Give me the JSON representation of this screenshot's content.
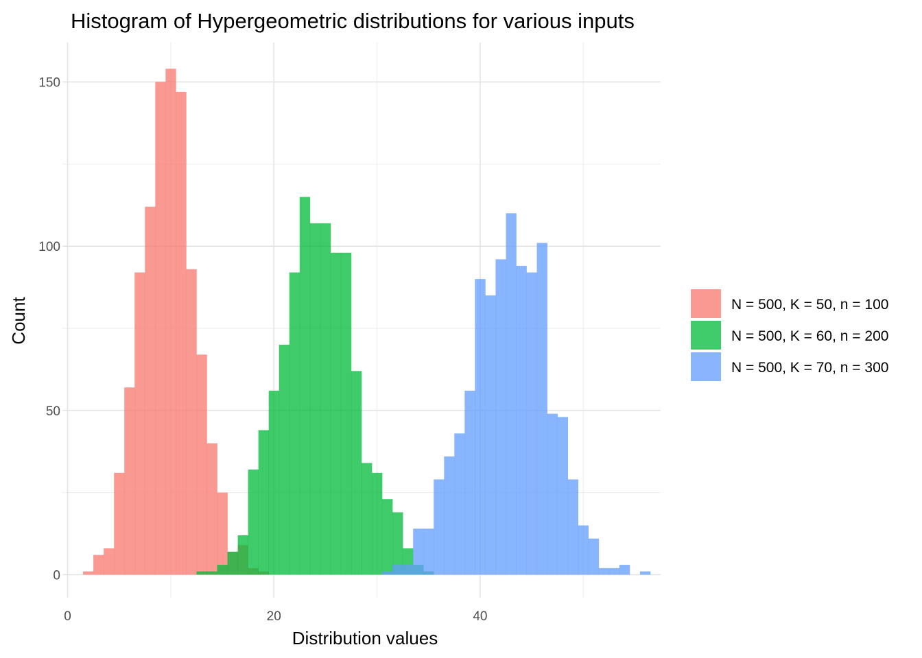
{
  "chart_data": {
    "type": "bar",
    "subtype": "overlapping-histogram",
    "title": "Histogram of Hypergeometric distributions for various inputs",
    "xlabel": "Distribution values",
    "ylabel": "Count",
    "xlim": [
      -0.5,
      57.5
    ],
    "ylim": [
      -7,
      162
    ],
    "x_ticks": [
      0,
      20,
      40
    ],
    "y_ticks": [
      0,
      50,
      100,
      150
    ],
    "x_minor_gridlines": [
      10,
      30,
      50
    ],
    "y_minor_gridlines": [
      25,
      75,
      125
    ],
    "grid": true,
    "bin_width": 1,
    "bar_opacity": 0.75,
    "legend_position": "right",
    "series": [
      {
        "name": "N = 500, K = 50, n = 100",
        "color": "#F8766D",
        "bins": [
          {
            "x": 2,
            "count": 1
          },
          {
            "x": 3,
            "count": 6
          },
          {
            "x": 4,
            "count": 8
          },
          {
            "x": 5,
            "count": 31
          },
          {
            "x": 6,
            "count": 57
          },
          {
            "x": 7,
            "count": 92
          },
          {
            "x": 8,
            "count": 112
          },
          {
            "x": 9,
            "count": 150
          },
          {
            "x": 10,
            "count": 154
          },
          {
            "x": 11,
            "count": 147
          },
          {
            "x": 12,
            "count": 93
          },
          {
            "x": 13,
            "count": 67
          },
          {
            "x": 14,
            "count": 40
          },
          {
            "x": 15,
            "count": 25
          },
          {
            "x": 16,
            "count": 7
          },
          {
            "x": 17,
            "count": 9
          },
          {
            "x": 18,
            "count": 2
          },
          {
            "x": 19,
            "count": 1
          }
        ]
      },
      {
        "name": "N = 500, K = 60, n = 200",
        "color": "#00BA38",
        "bins": [
          {
            "x": 13,
            "count": 1
          },
          {
            "x": 14,
            "count": 1
          },
          {
            "x": 15,
            "count": 3
          },
          {
            "x": 16,
            "count": 7
          },
          {
            "x": 17,
            "count": 12
          },
          {
            "x": 18,
            "count": 32
          },
          {
            "x": 19,
            "count": 44
          },
          {
            "x": 20,
            "count": 56
          },
          {
            "x": 21,
            "count": 70
          },
          {
            "x": 22,
            "count": 92
          },
          {
            "x": 23,
            "count": 115
          },
          {
            "x": 24,
            "count": 107
          },
          {
            "x": 25,
            "count": 107
          },
          {
            "x": 26,
            "count": 98
          },
          {
            "x": 27,
            "count": 98
          },
          {
            "x": 28,
            "count": 62
          },
          {
            "x": 29,
            "count": 34
          },
          {
            "x": 30,
            "count": 31
          },
          {
            "x": 31,
            "count": 23
          },
          {
            "x": 32,
            "count": 19
          },
          {
            "x": 33,
            "count": 8
          },
          {
            "x": 34,
            "count": 3
          },
          {
            "x": 35,
            "count": 1
          }
        ]
      },
      {
        "name": "N = 500, K = 70, n = 300",
        "color": "#619CFF",
        "bins": [
          {
            "x": 31,
            "count": 1
          },
          {
            "x": 32,
            "count": 3
          },
          {
            "x": 33,
            "count": 3
          },
          {
            "x": 34,
            "count": 14
          },
          {
            "x": 35,
            "count": 14
          },
          {
            "x": 36,
            "count": 29
          },
          {
            "x": 37,
            "count": 36
          },
          {
            "x": 38,
            "count": 43
          },
          {
            "x": 39,
            "count": 56
          },
          {
            "x": 40,
            "count": 90
          },
          {
            "x": 41,
            "count": 85
          },
          {
            "x": 42,
            "count": 96
          },
          {
            "x": 43,
            "count": 110
          },
          {
            "x": 44,
            "count": 94
          },
          {
            "x": 45,
            "count": 92
          },
          {
            "x": 46,
            "count": 101
          },
          {
            "x": 47,
            "count": 49
          },
          {
            "x": 48,
            "count": 48
          },
          {
            "x": 49,
            "count": 29
          },
          {
            "x": 50,
            "count": 15
          },
          {
            "x": 51,
            "count": 11
          },
          {
            "x": 52,
            "count": 2
          },
          {
            "x": 53,
            "count": 2
          },
          {
            "x": 54,
            "count": 3
          },
          {
            "x": 55,
            "count": 0
          },
          {
            "x": 56,
            "count": 1
          }
        ]
      }
    ]
  }
}
